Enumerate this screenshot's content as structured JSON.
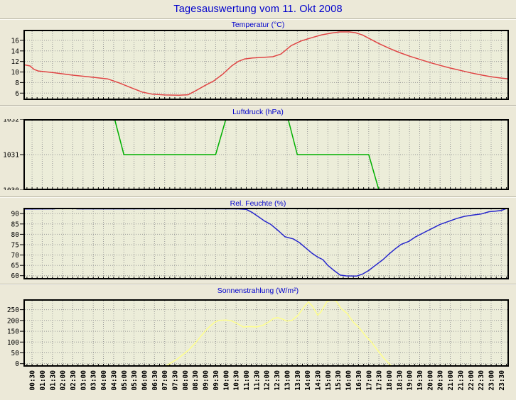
{
  "page": {
    "title": "Tagesauswertung vom 11. Okt 2008"
  },
  "colors": {
    "background": "#ece9d8",
    "plot_background": "#ecedd9",
    "grid": "#999999",
    "axis_border": "#000000",
    "title_blue": "#0000cc",
    "temperature_line": "#e04545",
    "pressure_line": "#00b000",
    "humidity_line": "#2626cc",
    "solar_line": "#ffff8c"
  },
  "time_axis": {
    "tmin": 0.08,
    "tmax": 23.87,
    "label_step_minutes": 30,
    "tick_step_minutes": 15,
    "labels": [
      "00:30",
      "01:00",
      "01:30",
      "02:00",
      "02:30",
      "03:00",
      "03:30",
      "04:00",
      "04:30",
      "05:00",
      "05:30",
      "06:00",
      "06:30",
      "07:00",
      "07:30",
      "08:00",
      "08:30",
      "09:00",
      "09:30",
      "10:00",
      "10:30",
      "11:00",
      "11:30",
      "12:00",
      "12:30",
      "13:00",
      "13:30",
      "14:00",
      "14:30",
      "15:00",
      "15:30",
      "16:00",
      "16:30",
      "17:00",
      "17:30",
      "18:00",
      "18:30",
      "19:00",
      "19:30",
      "20:00",
      "20:30",
      "21:00",
      "21:30",
      "22:00",
      "22:30",
      "23:00",
      "23:30"
    ]
  },
  "chart_data": [
    {
      "type": "line",
      "title": "Temperatur (°C)",
      "color": "#e04545",
      "ylim": [
        4.7,
        18.0
      ],
      "yticks": [
        6,
        8,
        10,
        12,
        14,
        16
      ],
      "x_unit": "hours",
      "points": [
        [
          0.08,
          11.4
        ],
        [
          0.4,
          11.15
        ],
        [
          0.6,
          10.5
        ],
        [
          0.8,
          10.2
        ],
        [
          1.5,
          9.9
        ],
        [
          2.5,
          9.4
        ],
        [
          3.5,
          9.0
        ],
        [
          4.2,
          8.7
        ],
        [
          4.8,
          7.9
        ],
        [
          5.3,
          7.1
        ],
        [
          5.9,
          6.2
        ],
        [
          6.4,
          5.8
        ],
        [
          7.0,
          5.65
        ],
        [
          7.7,
          5.6
        ],
        [
          8.15,
          5.7
        ],
        [
          8.5,
          6.4
        ],
        [
          9.0,
          7.5
        ],
        [
          9.4,
          8.3
        ],
        [
          9.85,
          9.6
        ],
        [
          10.3,
          11.2
        ],
        [
          10.6,
          12.0
        ],
        [
          10.9,
          12.45
        ],
        [
          11.3,
          12.65
        ],
        [
          11.9,
          12.8
        ],
        [
          12.3,
          12.9
        ],
        [
          12.7,
          13.4
        ],
        [
          13.2,
          15.0
        ],
        [
          13.7,
          15.9
        ],
        [
          14.2,
          16.5
        ],
        [
          14.7,
          17.05
        ],
        [
          15.2,
          17.4
        ],
        [
          15.6,
          17.6
        ],
        [
          16.05,
          17.6
        ],
        [
          16.35,
          17.45
        ],
        [
          16.7,
          17.0
        ],
        [
          17.0,
          16.4
        ],
        [
          17.5,
          15.4
        ],
        [
          18.0,
          14.5
        ],
        [
          18.5,
          13.7
        ],
        [
          19.0,
          13.0
        ],
        [
          19.5,
          12.4
        ],
        [
          20.0,
          11.8
        ],
        [
          20.5,
          11.25
        ],
        [
          21.0,
          10.75
        ],
        [
          21.5,
          10.3
        ],
        [
          22.0,
          9.85
        ],
        [
          22.5,
          9.45
        ],
        [
          23.0,
          9.1
        ],
        [
          23.5,
          8.85
        ],
        [
          23.87,
          8.7
        ]
      ]
    },
    {
      "type": "line",
      "title": "Luftdruck (hPa)",
      "color": "#00b000",
      "ylim": [
        1030,
        1032
      ],
      "yticks": [
        1030,
        1031,
        1032
      ],
      "x_unit": "hours",
      "points": [
        [
          0.08,
          1032
        ],
        [
          4.55,
          1032
        ],
        [
          5.0,
          1031
        ],
        [
          9.5,
          1031
        ],
        [
          10.0,
          1032
        ],
        [
          13.05,
          1032
        ],
        [
          13.5,
          1031
        ],
        [
          17.0,
          1031
        ],
        [
          17.5,
          1030
        ],
        [
          23.87,
          1030
        ]
      ]
    },
    {
      "type": "line",
      "title": "Rel. Feuchte (%)",
      "color": "#2626cc",
      "ylim": [
        58.2,
        92.8
      ],
      "yticks": [
        60,
        65,
        70,
        75,
        80,
        85,
        90
      ],
      "x_unit": "hours",
      "points": [
        [
          0.08,
          92.2
        ],
        [
          1.6,
          92.3
        ],
        [
          1.8,
          92.7
        ],
        [
          2.5,
          92.7
        ],
        [
          2.7,
          92.3
        ],
        [
          5.0,
          92.3
        ],
        [
          8.0,
          92.4
        ],
        [
          10.6,
          92.3
        ],
        [
          11.0,
          92.0
        ],
        [
          11.3,
          90.5
        ],
        [
          11.6,
          88.5
        ],
        [
          11.9,
          86.4
        ],
        [
          12.2,
          84.8
        ],
        [
          12.6,
          81.5
        ],
        [
          12.9,
          78.8
        ],
        [
          13.3,
          77.8
        ],
        [
          13.6,
          76.0
        ],
        [
          13.9,
          73.5
        ],
        [
          14.2,
          71.0
        ],
        [
          14.5,
          69.0
        ],
        [
          14.75,
          67.8
        ],
        [
          15.0,
          65.0
        ],
        [
          15.3,
          62.5
        ],
        [
          15.6,
          60.3
        ],
        [
          15.9,
          59.9
        ],
        [
          16.4,
          59.8
        ],
        [
          16.7,
          60.8
        ],
        [
          17.0,
          62.5
        ],
        [
          17.3,
          64.8
        ],
        [
          17.7,
          67.8
        ],
        [
          18.0,
          70.5
        ],
        [
          18.3,
          73.0
        ],
        [
          18.6,
          75.2
        ],
        [
          18.95,
          76.5
        ],
        [
          19.3,
          78.8
        ],
        [
          19.7,
          80.8
        ],
        [
          20.1,
          82.8
        ],
        [
          20.5,
          84.8
        ],
        [
          20.9,
          86.2
        ],
        [
          21.3,
          87.6
        ],
        [
          21.7,
          88.7
        ],
        [
          22.1,
          89.3
        ],
        [
          22.5,
          89.8
        ],
        [
          22.9,
          90.9
        ],
        [
          23.2,
          91.2
        ],
        [
          23.5,
          91.5
        ],
        [
          23.7,
          92.3
        ],
        [
          23.87,
          92.7
        ]
      ]
    },
    {
      "type": "line",
      "title": "Sonnenstrahlung (W/m²)",
      "color": "#ffff8c",
      "ylim": [
        -14,
        298
      ],
      "yticks": [
        0,
        50,
        100,
        150,
        200,
        250
      ],
      "x_unit": "hours",
      "points": [
        [
          0.08,
          -14
        ],
        [
          7.0,
          -14
        ],
        [
          7.25,
          0
        ],
        [
          7.6,
          20
        ],
        [
          7.9,
          42
        ],
        [
          8.2,
          65
        ],
        [
          8.5,
          95
        ],
        [
          8.8,
          130
        ],
        [
          9.1,
          163
        ],
        [
          9.45,
          192
        ],
        [
          9.65,
          200
        ],
        [
          10.0,
          202
        ],
        [
          10.25,
          199
        ],
        [
          10.55,
          186
        ],
        [
          10.85,
          170
        ],
        [
          11.2,
          172
        ],
        [
          11.5,
          170
        ],
        [
          11.8,
          177
        ],
        [
          12.1,
          193
        ],
        [
          12.35,
          210
        ],
        [
          12.55,
          213
        ],
        [
          12.75,
          207
        ],
        [
          13.0,
          197
        ],
        [
          13.25,
          201
        ],
        [
          13.55,
          225
        ],
        [
          13.85,
          265
        ],
        [
          14.05,
          286
        ],
        [
          14.25,
          265
        ],
        [
          14.5,
          224
        ],
        [
          14.65,
          238
        ],
        [
          14.95,
          287
        ],
        [
          15.15,
          294
        ],
        [
          15.4,
          291
        ],
        [
          15.65,
          255
        ],
        [
          15.95,
          232
        ],
        [
          16.25,
          192
        ],
        [
          16.55,
          165
        ],
        [
          16.85,
          128
        ],
        [
          17.15,
          98
        ],
        [
          17.45,
          60
        ],
        [
          17.75,
          24
        ],
        [
          18.0,
          0
        ],
        [
          18.15,
          -14
        ],
        [
          23.87,
          -14
        ]
      ]
    }
  ]
}
